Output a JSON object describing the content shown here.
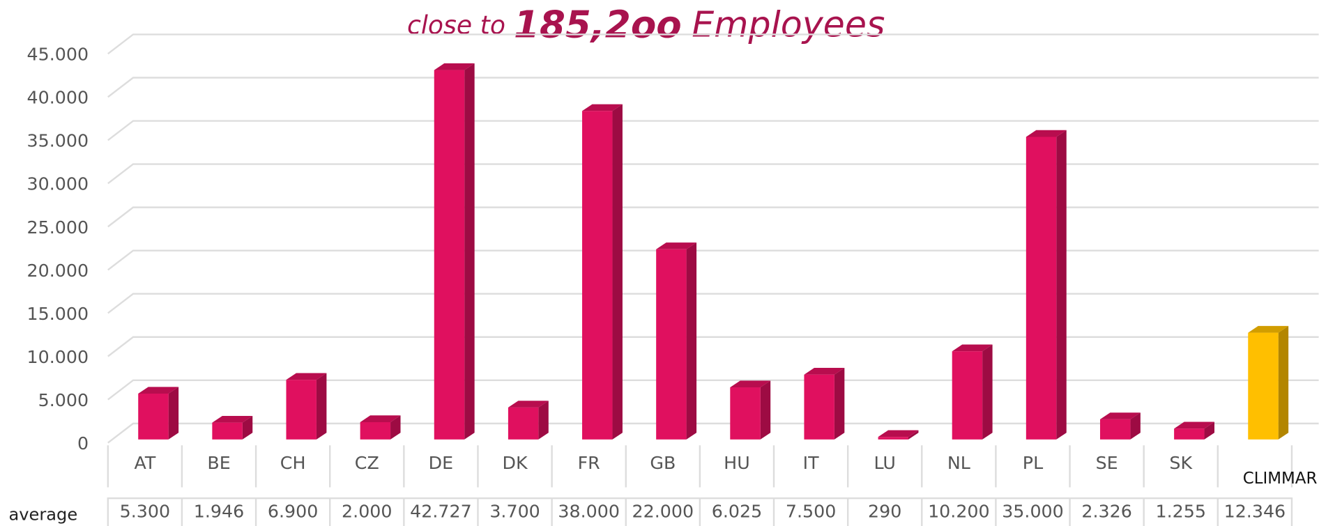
{
  "chart_data": {
    "type": "bar3d",
    "title_parts": [
      "close to",
      "185,2oo",
      "Employees"
    ],
    "title_color": "#a8134e",
    "categories": [
      "AT",
      "BE",
      "CH",
      "CZ",
      "DE",
      "DK",
      "FR",
      "GB",
      "HU",
      "IT",
      "LU",
      "NL",
      "PL",
      "SE",
      "SK",
      "CLIMMAR"
    ],
    "values": [
      5300,
      1946,
      6900,
      2000,
      42727,
      3700,
      38000,
      22000,
      6025,
      7500,
      290,
      10200,
      35000,
      2326,
      1255,
      12346
    ],
    "value_labels": [
      "5.300",
      "1.946",
      "6.900",
      "2.000",
      "42.727",
      "3.700",
      "38.000",
      "22.000",
      "6.025",
      "7.500",
      "290",
      "10.200",
      "35.000",
      "2.326",
      "1.255",
      "12.346"
    ],
    "colors": [
      "#e0105f",
      "#e0105f",
      "#e0105f",
      "#e0105f",
      "#e0105f",
      "#e0105f",
      "#e0105f",
      "#e0105f",
      "#e0105f",
      "#e0105f",
      "#e0105f",
      "#e0105f",
      "#e0105f",
      "#e0105f",
      "#e0105f",
      "#ffbf00"
    ],
    "table_row_label": "average",
    "ylim": [
      0,
      45000
    ],
    "yticks": [
      0,
      {
        "value": 5000,
        "label": "5.000"
      },
      {
        "value": 10000,
        "label": "10.000"
      },
      {
        "value": 15000,
        "label": "15.000"
      },
      {
        "value": 20000,
        "label": "20.000"
      },
      {
        "value": 25000,
        "label": "25.000"
      },
      {
        "value": 30000,
        "label": "30.000"
      },
      {
        "value": 35000,
        "label": "35.000"
      },
      {
        "value": 40000,
        "label": "40.000"
      },
      {
        "value": 45000,
        "label": "45.000"
      }
    ],
    "grid": true
  }
}
